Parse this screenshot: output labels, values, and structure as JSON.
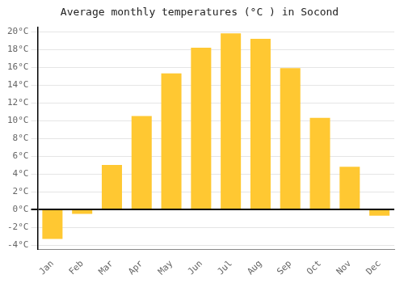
{
  "chart_data": {
    "type": "bar",
    "title": "Average monthly temperatures (°C ) in Socond",
    "categories": [
      "Jan",
      "Feb",
      "Mar",
      "Apr",
      "May",
      "Jun",
      "Jul",
      "Aug",
      "Sep",
      "Oct",
      "Nov",
      "Dec"
    ],
    "values": [
      -3.3,
      -0.5,
      5.0,
      10.5,
      15.3,
      18.2,
      19.8,
      19.2,
      15.9,
      10.3,
      4.8,
      -0.7
    ],
    "color": "#FFC832",
    "ylim": [
      -4.5,
      20.5
    ],
    "yticks": [
      {
        "value": -4,
        "label": "-4°C"
      },
      {
        "value": -2,
        "label": "-2°C"
      },
      {
        "value": 0,
        "label": "0°C"
      },
      {
        "value": 2,
        "label": "2°C"
      },
      {
        "value": 4,
        "label": "4°C"
      },
      {
        "value": 6,
        "label": "6°C"
      },
      {
        "value": 8,
        "label": "8°C"
      },
      {
        "value": 10,
        "label": "10°C"
      },
      {
        "value": 12,
        "label": "12°C"
      },
      {
        "value": 14,
        "label": "14°C"
      },
      {
        "value": 16,
        "label": "16°C"
      },
      {
        "value": 18,
        "label": "18°C"
      },
      {
        "value": 20,
        "label": "20°C"
      }
    ],
    "grid": true
  }
}
